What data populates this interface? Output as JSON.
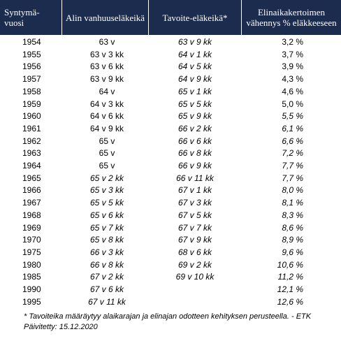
{
  "table": {
    "header": [
      [
        "Syntymä-",
        "vuosi"
      ],
      [
        "Alin vanhuuseläkeikä"
      ],
      [
        "Tavoite-eläkeikä*"
      ],
      [
        "Elinaikakertoimen",
        "vähennys % eläkkeeseen"
      ]
    ],
    "rows": [
      [
        "1954",
        "63 v",
        "63 v 9 kk",
        "3,2 %"
      ],
      [
        "1955",
        "63 v 3 kk",
        "64 v 1 kk",
        "3,7 %"
      ],
      [
        "1956",
        "63 v 6 kk",
        "64 v 5 kk",
        "3,9 %"
      ],
      [
        "1957",
        "63 v 9 kk",
        "64 v 9 kk",
        "4,3 %"
      ],
      [
        "1958",
        "64 v",
        "65 v 1 kk",
        "4,6 %"
      ],
      [
        "1959",
        "64 v 3 kk",
        "65 v 5 kk",
        "5,0 %"
      ],
      [
        "1960",
        "64 v 6 kk",
        "65 v 9 kk",
        "5,5 %"
      ],
      [
        "1961",
        "64 v 9 kk",
        "66 v 2 kk",
        "6,1 %"
      ],
      [
        "1962",
        "65 v",
        "66 v 6 kk",
        "6,6 %"
      ],
      [
        "1963",
        "65 v",
        "66 v 8 kk",
        "7,2 %"
      ],
      [
        "1964",
        "65 v",
        "66 v 9 kk",
        "7,7 %"
      ],
      [
        "1965",
        "65 v 2 kk",
        "66 v 11 kk",
        "7,7 %"
      ],
      [
        "1966",
        "65 v 3 kk",
        "67 v 1 kk",
        "8,0 %"
      ],
      [
        "1967",
        "65 v 5 kk",
        "67 v 3 kk",
        "8,1 %"
      ],
      [
        "1968",
        "65 v 6 kk",
        "67 v 5 kk",
        "8,3 %"
      ],
      [
        "1969",
        "65 v 7 kk",
        "67 v 7 kk",
        "8,6 %"
      ],
      [
        "1970",
        "65 v 8 kk",
        "67 v 9 kk",
        "8,9 %"
      ],
      [
        "1975",
        "66 v 3 kk",
        "68 v 6 kk",
        "9,6 %"
      ],
      [
        "1980",
        "66 v 8 kk",
        "69 v 2 kk",
        "10,6 %"
      ],
      [
        "1985",
        "67 v 2 kk",
        "69 v 10 kk",
        "11,2 %"
      ],
      [
        "1990",
        "67 v 6 kk",
        null,
        "12,1 %"
      ],
      [
        "1995",
        "67 v 11 kk",
        null,
        "12,6 %"
      ]
    ]
  },
  "footnote": [
    "* Tavoiteika määräytyy alaikarajan ja elinajan odotteen kehityksen perusteella. - ETK",
    "Päivitetty: 15.12.2020"
  ]
}
